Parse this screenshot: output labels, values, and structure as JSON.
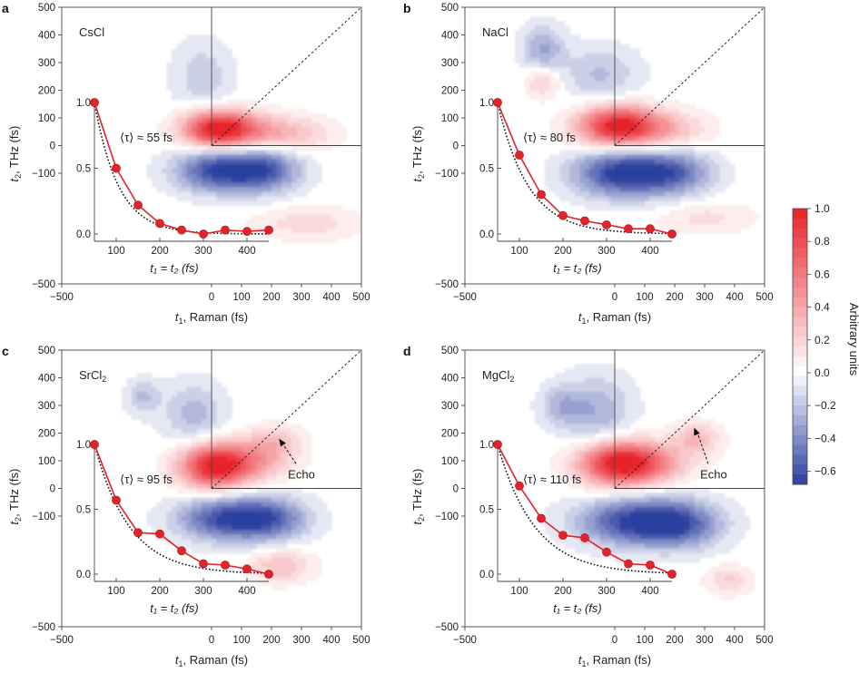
{
  "figure": {
    "colorbar": {
      "title": "Arbitrary units",
      "ticks": [
        1.0,
        0.8,
        0.6,
        0.4,
        0.2,
        0.0,
        -0.2,
        -0.4,
        -0.6
      ],
      "tick_labels": [
        "1.0",
        "0.8",
        "0.6",
        "0.4",
        "0.2",
        "0.0",
        "−0.2",
        "−0.4",
        "−0.6"
      ],
      "range": [
        -0.68,
        1.0
      ],
      "colors": {
        "positive": "#e8222a",
        "zero": "#ffffff",
        "negative": "#2b3f9e"
      }
    }
  },
  "chart_data": [
    {
      "id": "a",
      "type": "heatmap",
      "panel_letter": "a",
      "salt": "CsCl",
      "salt_sub": "",
      "xlabel_main": "t",
      "xlabel_sub": "1",
      "xlabel_rest": ", Raman (fs)",
      "ylabel_main": "t",
      "ylabel_sub": "2",
      "ylabel_rest": ", THz (fs)",
      "xlim": [
        -500,
        500
      ],
      "ylim": [
        -500,
        500
      ],
      "xticks": [
        -500,
        0,
        100,
        200,
        300,
        400,
        500
      ],
      "xtick_labels": [
        "−500",
        "0",
        "100",
        "200",
        "300",
        "400",
        "500"
      ],
      "yticks": [
        -500,
        -100,
        0,
        100,
        200,
        300,
        400,
        500
      ],
      "ytick_labels": [
        "−500",
        "−100",
        "0",
        "100",
        "200",
        "300",
        "400",
        "500"
      ],
      "blobs": [
        {
          "x": 20,
          "y": 60,
          "sx": 80,
          "sy": 45,
          "a": 1.0
        },
        {
          "x": 150,
          "y": 50,
          "sx": 110,
          "sy": 45,
          "a": 0.35
        },
        {
          "x": 300,
          "y": 40,
          "sx": 90,
          "sy": 40,
          "a": 0.15
        },
        {
          "x": 20,
          "y": -90,
          "sx": 100,
          "sy": 55,
          "a": -0.62
        },
        {
          "x": 180,
          "y": -90,
          "sx": 85,
          "sy": 55,
          "a": -0.5
        },
        {
          "x": -30,
          "y": 250,
          "sx": 70,
          "sy": 90,
          "a": -0.18
        },
        {
          "x": 320,
          "y": -280,
          "sx": 120,
          "sy": 40,
          "a": 0.18
        }
      ],
      "inset": {
        "tau_label": "⟨τ⟩ ≈ 55 fs",
        "xlabel": "t₁ = t₂ (fs)",
        "xlim": [
          50,
          450
        ],
        "ylim": [
          0.0,
          1.0
        ],
        "xticks": [
          100,
          200,
          300,
          400
        ],
        "yticks": [
          0.0,
          0.5,
          1.0
        ],
        "ytick_labels": [
          "0.0",
          "0.5",
          "1.0"
        ],
        "x": [
          50,
          100,
          150,
          200,
          250,
          300,
          350,
          400,
          450
        ],
        "measured": [
          1.0,
          0.5,
          0.22,
          0.08,
          0.03,
          0.0,
          0.03,
          0.02,
          0.03
        ],
        "fit_tau": 55
      },
      "echo": null
    },
    {
      "id": "b",
      "type": "heatmap",
      "panel_letter": "b",
      "salt": "NaCl",
      "salt_sub": "",
      "xlabel_main": "t",
      "xlabel_sub": "1",
      "xlabel_rest": ", Raman (fs)",
      "ylabel_main": "t",
      "ylabel_sub": "2",
      "ylabel_rest": ", THz (fs)",
      "xlim": [
        -500,
        500
      ],
      "ylim": [
        -500,
        500
      ],
      "xticks": [
        -500,
        0,
        100,
        200,
        300,
        400,
        500
      ],
      "xtick_labels": [
        "−500",
        "0",
        "100",
        "200",
        "300",
        "400",
        "500"
      ],
      "yticks": [
        -500,
        -100,
        0,
        100,
        200,
        300,
        400,
        500
      ],
      "ytick_labels": [
        "−500",
        "−100",
        "0",
        "100",
        "200",
        "300",
        "400",
        "500"
      ],
      "blobs": [
        {
          "x": 10,
          "y": 70,
          "sx": 90,
          "sy": 50,
          "a": 1.0
        },
        {
          "x": 160,
          "y": 60,
          "sx": 100,
          "sy": 45,
          "a": 0.3
        },
        {
          "x": 20,
          "y": -100,
          "sx": 110,
          "sy": 60,
          "a": -0.68
        },
        {
          "x": 200,
          "y": -100,
          "sx": 90,
          "sy": 55,
          "a": -0.45
        },
        {
          "x": -240,
          "y": 350,
          "sx": 50,
          "sy": 60,
          "a": -0.3
        },
        {
          "x": -50,
          "y": 260,
          "sx": 90,
          "sy": 70,
          "a": -0.22
        },
        {
          "x": -240,
          "y": 230,
          "sx": 40,
          "sy": 40,
          "a": 0.25
        },
        {
          "x": 300,
          "y": -260,
          "sx": 110,
          "sy": 40,
          "a": 0.15
        }
      ],
      "inset": {
        "tau_label": "⟨τ⟩ ≈ 80 fs",
        "xlabel": "t₁ = t₂ (fs)",
        "xlim": [
          50,
          450
        ],
        "ylim": [
          0.0,
          1.0
        ],
        "xticks": [
          100,
          200,
          300,
          400
        ],
        "yticks": [
          0.0,
          0.5,
          1.0
        ],
        "ytick_labels": [
          "0.0",
          "0.5",
          "1.0"
        ],
        "x": [
          50,
          100,
          150,
          200,
          250,
          300,
          350,
          400,
          450
        ],
        "measured": [
          1.0,
          0.6,
          0.3,
          0.14,
          0.1,
          0.07,
          0.04,
          0.04,
          0.0
        ],
        "fit_tau": 70
      },
      "echo": null
    },
    {
      "id": "c",
      "type": "heatmap",
      "panel_letter": "c",
      "salt": "SrCl",
      "salt_sub": "2",
      "xlabel_main": "t",
      "xlabel_sub": "1",
      "xlabel_rest": ", Raman (fs)",
      "ylabel_main": "t",
      "ylabel_sub": "2",
      "ylabel_rest": ", THz (fs)",
      "xlim": [
        -500,
        500
      ],
      "ylim": [
        -500,
        500
      ],
      "xticks": [
        -500,
        0,
        100,
        200,
        300,
        400,
        500
      ],
      "xtick_labels": [
        "−500",
        "0",
        "100",
        "200",
        "300",
        "400",
        "500"
      ],
      "yticks": [
        -500,
        -100,
        0,
        100,
        200,
        300,
        400,
        500
      ],
      "ytick_labels": [
        "−500",
        "−100",
        "0",
        "100",
        "200",
        "300",
        "400",
        "500"
      ],
      "blobs": [
        {
          "x": 10,
          "y": 80,
          "sx": 80,
          "sy": 55,
          "a": 1.0
        },
        {
          "x": 140,
          "y": 100,
          "sx": 90,
          "sy": 50,
          "a": 0.35
        },
        {
          "x": 210,
          "y": 170,
          "sx": 60,
          "sy": 40,
          "a": 0.25
        },
        {
          "x": 40,
          "y": -110,
          "sx": 110,
          "sy": 55,
          "a": -0.6
        },
        {
          "x": 200,
          "y": -110,
          "sx": 90,
          "sy": 55,
          "a": -0.45
        },
        {
          "x": -60,
          "y": 270,
          "sx": 70,
          "sy": 80,
          "a": -0.25
        },
        {
          "x": -230,
          "y": 330,
          "sx": 40,
          "sy": 45,
          "a": -0.22
        },
        {
          "x": 230,
          "y": -280,
          "sx": 70,
          "sy": 40,
          "a": 0.3
        }
      ],
      "inset": {
        "tau_label": "⟨τ⟩ ≈ 95 fs",
        "xlabel": "t₁ = t₂ (fs)",
        "xlim": [
          50,
          450
        ],
        "ylim": [
          0.0,
          1.0
        ],
        "xticks": [
          100,
          200,
          300,
          400
        ],
        "yticks": [
          0.0,
          0.5,
          1.0
        ],
        "ytick_labels": [
          "0.0",
          "0.5",
          "1.0"
        ],
        "x": [
          50,
          100,
          150,
          200,
          250,
          300,
          350,
          400,
          450
        ],
        "measured": [
          1.0,
          0.57,
          0.32,
          0.31,
          0.18,
          0.08,
          0.07,
          0.04,
          0.0
        ],
        "fit_tau": 80
      },
      "echo": {
        "label": "Echo",
        "arrow_to": [
          225,
          180
        ],
        "text_at": [
          300,
          50
        ]
      }
    },
    {
      "id": "d",
      "type": "heatmap",
      "panel_letter": "d",
      "salt": "MgCl",
      "salt_sub": "2",
      "xlabel_main": "t",
      "xlabel_sub": "1",
      "xlabel_rest": ", Raman (fs)",
      "ylabel_main": "t",
      "ylabel_sub": "2",
      "ylabel_rest": ", THz (fs)",
      "xlim": [
        -500,
        500
      ],
      "ylim": [
        -500,
        500
      ],
      "xticks": [
        -500,
        0,
        100,
        200,
        300,
        400,
        500
      ],
      "xtick_labels": [
        "−500",
        "0",
        "100",
        "200",
        "300",
        "400",
        "500"
      ],
      "yticks": [
        -500,
        -100,
        0,
        100,
        200,
        300,
        400,
        500
      ],
      "ytick_labels": [
        "−500",
        "−100",
        "0",
        "100",
        "200",
        "300",
        "400",
        "500"
      ],
      "blobs": [
        {
          "x": 10,
          "y": 90,
          "sx": 90,
          "sy": 55,
          "a": 1.0
        },
        {
          "x": 130,
          "y": 90,
          "sx": 90,
          "sy": 50,
          "a": 0.35
        },
        {
          "x": 270,
          "y": 180,
          "sx": 55,
          "sy": 40,
          "a": 0.3
        },
        {
          "x": 60,
          "y": -120,
          "sx": 130,
          "sy": 60,
          "a": -0.62
        },
        {
          "x": 220,
          "y": -130,
          "sx": 100,
          "sy": 60,
          "a": -0.45
        },
        {
          "x": -60,
          "y": 280,
          "sx": 80,
          "sy": 90,
          "a": -0.28
        },
        {
          "x": -180,
          "y": 300,
          "sx": 50,
          "sy": 50,
          "a": -0.22
        },
        {
          "x": 380,
          "y": -330,
          "sx": 50,
          "sy": 35,
          "a": 0.22
        }
      ],
      "inset": {
        "tau_label": "⟨τ⟩ ≈ 110 fs",
        "xlabel": "t₁ = t₂ (fs)",
        "xlim": [
          50,
          450
        ],
        "ylim": [
          0.0,
          1.0
        ],
        "xticks": [
          100,
          200,
          300,
          400
        ],
        "yticks": [
          0.0,
          0.5,
          1.0
        ],
        "ytick_labels": [
          "0.0",
          "0.5",
          "1.0"
        ],
        "x": [
          50,
          100,
          150,
          200,
          250,
          300,
          350,
          400,
          450
        ],
        "measured": [
          1.0,
          0.68,
          0.43,
          0.3,
          0.28,
          0.17,
          0.08,
          0.07,
          0.0
        ],
        "fit_tau": 85
      },
      "echo": {
        "label": "Echo",
        "arrow_to": [
          265,
          220
        ],
        "text_at": [
          330,
          50
        ]
      }
    }
  ]
}
